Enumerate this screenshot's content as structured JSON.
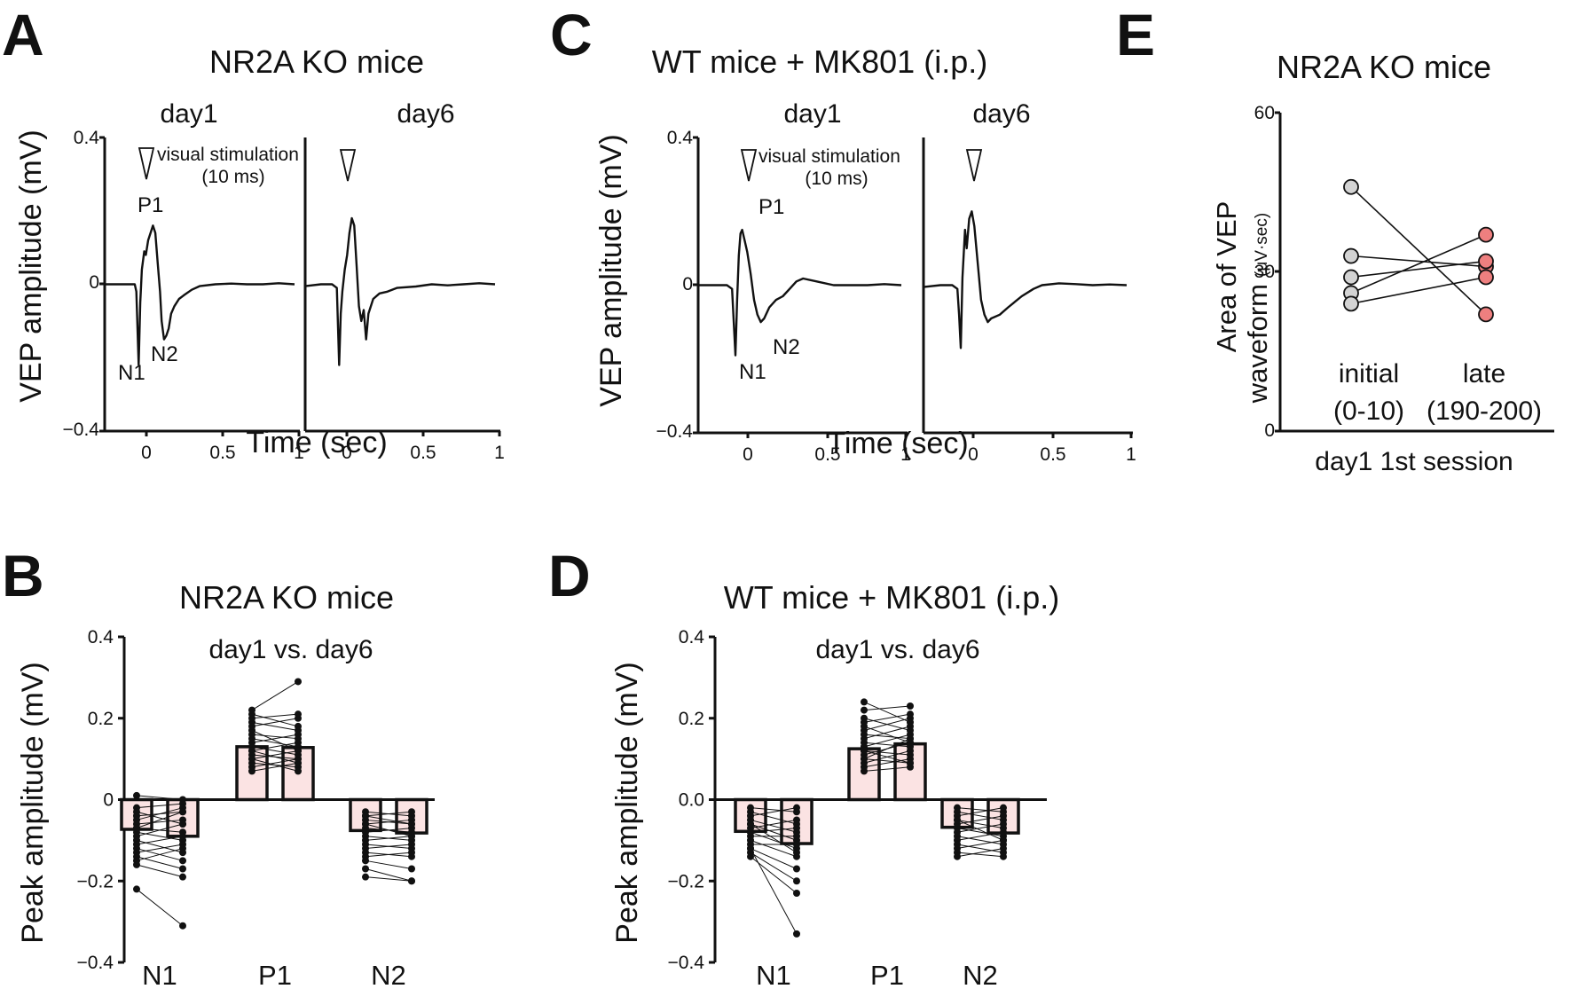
{
  "chart_data": [
    {
      "panel": "A",
      "type": "line",
      "title": "NR2A KO  mice",
      "ylabel": "VEP amplitude (mV)",
      "xlabel": "Time (sec)",
      "ylim": [
        -0.4,
        0.4
      ],
      "xlim": [
        -0.2,
        1.0
      ],
      "y_ticks": [
        "0.4",
        "0",
        "−0.4"
      ],
      "x_ticks": [
        "0",
        "0.5",
        "1"
      ],
      "stimulus_label": "visual stimulation",
      "stimulus_duration": "(10 ms)",
      "traces": [
        {
          "name": "day1",
          "peaks": {
            "P1": "P1",
            "N1": "N1",
            "N2": "N2"
          },
          "points": [
            [
              -0.2,
              0.0
            ],
            [
              -0.12,
              0.0
            ],
            [
              -0.05,
              0.0
            ],
            [
              -0.01,
              0.0
            ],
            [
              0.0,
              -0.02
            ],
            [
              0.015,
              -0.22
            ],
            [
              0.025,
              -0.05
            ],
            [
              0.035,
              0.04
            ],
            [
              0.05,
              0.09
            ],
            [
              0.06,
              0.08
            ],
            [
              0.075,
              0.12
            ],
            [
              0.09,
              0.14
            ],
            [
              0.105,
              0.16
            ],
            [
              0.12,
              0.14
            ],
            [
              0.135,
              0.06
            ],
            [
              0.15,
              -0.02
            ],
            [
              0.16,
              -0.1
            ],
            [
              0.175,
              -0.15
            ],
            [
              0.19,
              -0.14
            ],
            [
              0.205,
              -0.12
            ],
            [
              0.22,
              -0.08
            ],
            [
              0.24,
              -0.06
            ],
            [
              0.27,
              -0.04
            ],
            [
              0.3,
              -0.03
            ],
            [
              0.35,
              -0.015
            ],
            [
              0.4,
              -0.005
            ],
            [
              0.5,
              0.0
            ],
            [
              0.6,
              0.002
            ],
            [
              0.7,
              0.0
            ],
            [
              0.8,
              0.0
            ],
            [
              0.9,
              0.003
            ],
            [
              1.0,
              0.0
            ]
          ]
        },
        {
          "name": "day6",
          "points": [
            [
              -0.2,
              -0.005
            ],
            [
              -0.1,
              0.0
            ],
            [
              -0.03,
              0.0
            ],
            [
              0.0,
              -0.01
            ],
            [
              0.015,
              -0.22
            ],
            [
              0.025,
              -0.08
            ],
            [
              0.035,
              -0.02
            ],
            [
              0.05,
              0.04
            ],
            [
              0.065,
              0.08
            ],
            [
              0.08,
              0.14
            ],
            [
              0.095,
              0.18
            ],
            [
              0.11,
              0.16
            ],
            [
              0.125,
              0.05
            ],
            [
              0.14,
              -0.06
            ],
            [
              0.155,
              -0.1
            ],
            [
              0.17,
              -0.07
            ],
            [
              0.185,
              -0.15
            ],
            [
              0.2,
              -0.08
            ],
            [
              0.23,
              -0.04
            ],
            [
              0.27,
              -0.025
            ],
            [
              0.32,
              -0.02
            ],
            [
              0.38,
              -0.01
            ],
            [
              0.5,
              -0.006
            ],
            [
              0.6,
              0.0
            ],
            [
              0.7,
              -0.003
            ],
            [
              0.8,
              0.0
            ],
            [
              0.9,
              0.003
            ],
            [
              1.0,
              0.0
            ]
          ]
        }
      ]
    },
    {
      "panel": "C",
      "type": "line",
      "title": "WT mice + MK801 (i.p.)",
      "ylabel": "VEP amplitude (mV)",
      "xlabel": "Time (sec)",
      "ylim": [
        -0.4,
        0.4
      ],
      "xlim": [
        -0.2,
        1.0
      ],
      "y_ticks": [
        "0.4",
        "0",
        "−0.4"
      ],
      "x_ticks": [
        "0",
        "0.5",
        "1"
      ],
      "stimulus_label": "visual stimulation",
      "stimulus_duration": "(10 ms)",
      "traces": [
        {
          "name": "day1",
          "peaks": {
            "P1": "P1",
            "N1": "N1",
            "N2": "N2"
          },
          "points": [
            [
              -0.2,
              0.0
            ],
            [
              -0.1,
              0.0
            ],
            [
              -0.03,
              0.0
            ],
            [
              0.0,
              -0.01
            ],
            [
              0.01,
              -0.1
            ],
            [
              0.02,
              -0.19
            ],
            [
              0.03,
              -0.04
            ],
            [
              0.04,
              0.08
            ],
            [
              0.05,
              0.14
            ],
            [
              0.06,
              0.15
            ],
            [
              0.075,
              0.12
            ],
            [
              0.09,
              0.09
            ],
            [
              0.11,
              0.03
            ],
            [
              0.13,
              -0.04
            ],
            [
              0.15,
              -0.08
            ],
            [
              0.17,
              -0.1
            ],
            [
              0.19,
              -0.09
            ],
            [
              0.22,
              -0.06
            ],
            [
              0.26,
              -0.04
            ],
            [
              0.3,
              -0.03
            ],
            [
              0.34,
              -0.01
            ],
            [
              0.38,
              0.01
            ],
            [
              0.42,
              0.018
            ],
            [
              0.5,
              0.01
            ],
            [
              0.6,
              0.0
            ],
            [
              0.7,
              0.0
            ],
            [
              0.8,
              0.0
            ],
            [
              0.9,
              0.003
            ],
            [
              1.0,
              0.0
            ]
          ]
        },
        {
          "name": "day6",
          "points": [
            [
              -0.2,
              -0.005
            ],
            [
              -0.1,
              0.0
            ],
            [
              -0.03,
              0.0
            ],
            [
              0.0,
              -0.01
            ],
            [
              0.01,
              -0.08
            ],
            [
              0.02,
              -0.17
            ],
            [
              0.03,
              0.02
            ],
            [
              0.045,
              0.15
            ],
            [
              0.055,
              0.1
            ],
            [
              0.07,
              0.18
            ],
            [
              0.085,
              0.2
            ],
            [
              0.1,
              0.16
            ],
            [
              0.12,
              0.06
            ],
            [
              0.14,
              -0.04
            ],
            [
              0.16,
              -0.08
            ],
            [
              0.18,
              -0.1
            ],
            [
              0.2,
              -0.09
            ],
            [
              0.25,
              -0.08
            ],
            [
              0.3,
              -0.06
            ],
            [
              0.38,
              -0.03
            ],
            [
              0.45,
              -0.01
            ],
            [
              0.5,
              0.0
            ],
            [
              0.6,
              0.005
            ],
            [
              0.7,
              0.003
            ],
            [
              0.8,
              0.0
            ],
            [
              0.9,
              0.002
            ],
            [
              1.0,
              0.0
            ]
          ]
        }
      ]
    },
    {
      "panel": "E",
      "type": "scatter",
      "title": "NR2A KO mice",
      "ylabel_line1": "Area of VEP",
      "ylabel_line2": "waveform",
      "ylabel_unit": "(μV·sec)",
      "ylim": [
        0,
        60
      ],
      "y_ticks": [
        "60",
        "30",
        "0"
      ],
      "categories": [
        "initial",
        "late"
      ],
      "category_sublabels": [
        "(0-10)",
        "(190-200)"
      ],
      "xlabel": "day1 1st session",
      "colors": {
        "initial": "#d3d3d3",
        "late": "#ee7f7f"
      },
      "pairs": [
        [
          46,
          22
        ],
        [
          33,
          31
        ],
        [
          29,
          32
        ],
        [
          26,
          37
        ],
        [
          24,
          29
        ]
      ]
    },
    {
      "panel": "B",
      "type": "bar",
      "title": "NR2A KO mice",
      "subtitle": "day1 vs. day6",
      "ylabel": "Peak amplitude (mV)",
      "ylim": [
        -0.4,
        0.4
      ],
      "y_ticks": [
        "0.4",
        "0.2",
        "0",
        "−0.2",
        "−0.4"
      ],
      "categories": [
        "N1",
        "P1",
        "N2"
      ],
      "bar_color": "#fbe3e3",
      "series": [
        {
          "name": "day1",
          "values": [
            -0.073,
            0.13,
            -0.076
          ]
        },
        {
          "name": "day6",
          "values": [
            -0.09,
            0.128,
            -0.082
          ]
        }
      ],
      "pairs": {
        "N1": [
          [
            0.01,
            0.0
          ],
          [
            -0.02,
            -0.01
          ],
          [
            -0.04,
            -0.03
          ],
          [
            -0.05,
            -0.02
          ],
          [
            -0.06,
            -0.05
          ],
          [
            -0.07,
            -0.08
          ],
          [
            -0.08,
            -0.1
          ],
          [
            -0.09,
            -0.06
          ],
          [
            -0.1,
            -0.13
          ],
          [
            -0.11,
            -0.09
          ],
          [
            -0.12,
            -0.15
          ],
          [
            -0.13,
            -0.11
          ],
          [
            -0.14,
            -0.17
          ],
          [
            -0.15,
            -0.12
          ],
          [
            -0.16,
            -0.19
          ],
          [
            -0.07,
            -0.03
          ],
          [
            -0.03,
            -0.06
          ],
          [
            -0.22,
            -0.31
          ]
        ],
        "P1": [
          [
            0.07,
            0.09
          ],
          [
            0.08,
            0.1
          ],
          [
            0.09,
            0.08
          ],
          [
            0.1,
            0.12
          ],
          [
            0.11,
            0.1
          ],
          [
            0.12,
            0.14
          ],
          [
            0.13,
            0.11
          ],
          [
            0.14,
            0.16
          ],
          [
            0.15,
            0.13
          ],
          [
            0.16,
            0.15
          ],
          [
            0.17,
            0.12
          ],
          [
            0.18,
            0.2
          ],
          [
            0.19,
            0.17
          ],
          [
            0.2,
            0.21
          ],
          [
            0.21,
            0.18
          ],
          [
            0.22,
            0.29
          ],
          [
            0.12,
            0.09
          ],
          [
            0.1,
            0.07
          ]
        ],
        "N2": [
          [
            -0.03,
            -0.04
          ],
          [
            -0.04,
            -0.03
          ],
          [
            -0.05,
            -0.06
          ],
          [
            -0.06,
            -0.05
          ],
          [
            -0.07,
            -0.08
          ],
          [
            -0.08,
            -0.07
          ],
          [
            -0.09,
            -0.1
          ],
          [
            -0.1,
            -0.09
          ],
          [
            -0.11,
            -0.12
          ],
          [
            -0.12,
            -0.11
          ],
          [
            -0.13,
            -0.14
          ],
          [
            -0.14,
            -0.13
          ],
          [
            -0.15,
            -0.17
          ],
          [
            -0.17,
            -0.2
          ],
          [
            -0.19,
            -0.2
          ],
          [
            -0.06,
            -0.09
          ],
          [
            -0.04,
            -0.06
          ]
        ]
      }
    },
    {
      "panel": "D",
      "type": "bar",
      "title": "WT mice + MK801 (i.p.)",
      "subtitle": "day1 vs. day6",
      "ylabel": "Peak amplitude (mV)",
      "ylim": [
        -0.4,
        0.4
      ],
      "y_ticks": [
        "0.4",
        "0.2",
        "0.0",
        "−0.2",
        "−0.4"
      ],
      "categories": [
        "N1",
        "P1",
        "N2"
      ],
      "bar_color": "#fbe3e3",
      "series": [
        {
          "name": "day1",
          "values": [
            -0.078,
            0.125,
            -0.068
          ]
        },
        {
          "name": "day6",
          "values": [
            -0.108,
            0.137,
            -0.082
          ]
        }
      ],
      "pairs": {
        "N1": [
          [
            -0.02,
            -0.03
          ],
          [
            -0.03,
            -0.06
          ],
          [
            -0.04,
            -0.02
          ],
          [
            -0.05,
            -0.08
          ],
          [
            -0.06,
            -0.1
          ],
          [
            -0.07,
            -0.05
          ],
          [
            -0.08,
            -0.12
          ],
          [
            -0.09,
            -0.09
          ],
          [
            -0.1,
            -0.14
          ],
          [
            -0.11,
            -0.11
          ],
          [
            -0.12,
            -0.17
          ],
          [
            -0.13,
            -0.2
          ],
          [
            -0.14,
            -0.23
          ],
          [
            -0.08,
            -0.07
          ],
          [
            -0.06,
            -0.13
          ],
          [
            -0.12,
            -0.33
          ]
        ],
        "P1": [
          [
            0.07,
            0.08
          ],
          [
            0.08,
            0.1
          ],
          [
            0.09,
            0.12
          ],
          [
            0.1,
            0.09
          ],
          [
            0.11,
            0.14
          ],
          [
            0.12,
            0.11
          ],
          [
            0.13,
            0.16
          ],
          [
            0.14,
            0.13
          ],
          [
            0.15,
            0.18
          ],
          [
            0.16,
            0.15
          ],
          [
            0.17,
            0.2
          ],
          [
            0.18,
            0.14
          ],
          [
            0.19,
            0.21
          ],
          [
            0.2,
            0.17
          ],
          [
            0.22,
            0.23
          ],
          [
            0.24,
            0.19
          ],
          [
            0.1,
            0.15
          ],
          [
            0.12,
            0.09
          ]
        ],
        "N2": [
          [
            -0.02,
            -0.03
          ],
          [
            -0.03,
            -0.05
          ],
          [
            -0.04,
            -0.02
          ],
          [
            -0.05,
            -0.07
          ],
          [
            -0.06,
            -0.04
          ],
          [
            -0.07,
            -0.09
          ],
          [
            -0.08,
            -0.06
          ],
          [
            -0.09,
            -0.11
          ],
          [
            -0.1,
            -0.08
          ],
          [
            -0.11,
            -0.13
          ],
          [
            -0.12,
            -0.1
          ],
          [
            -0.13,
            -0.14
          ],
          [
            -0.14,
            -0.12
          ],
          [
            -0.05,
            -0.1
          ]
        ]
      }
    }
  ],
  "panel_letters": [
    "A",
    "B",
    "C",
    "D",
    "E"
  ]
}
